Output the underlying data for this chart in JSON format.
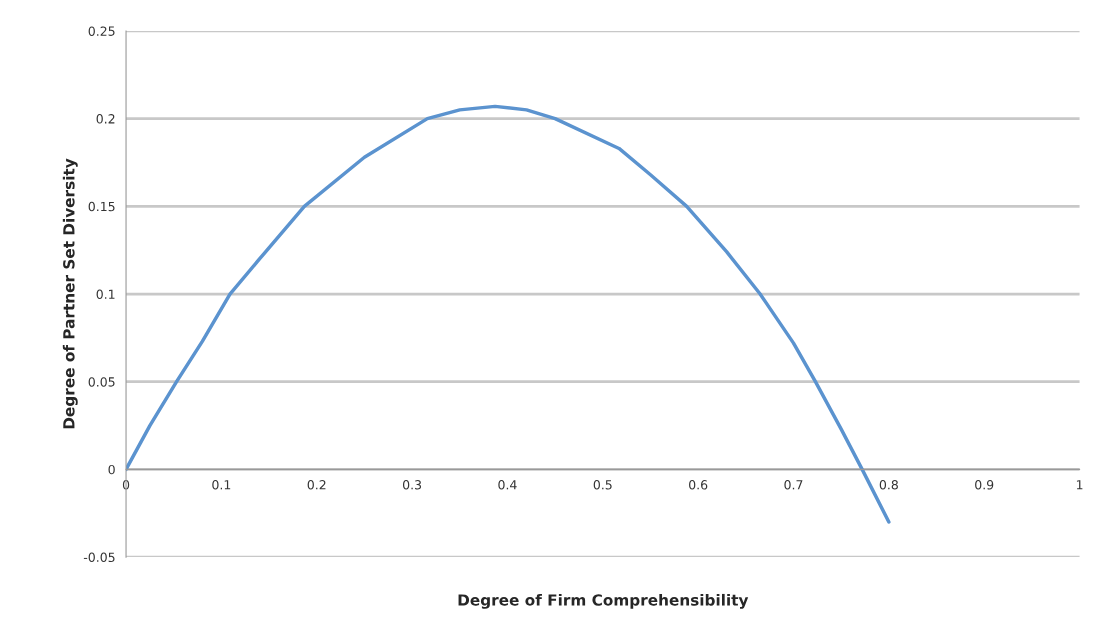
{
  "chart_data": {
    "type": "line",
    "xlabel": "Degree of Firm Comprehensibility",
    "ylabel": "Degree of Partner Set Diversity",
    "series": [
      {
        "color": "#5b93cf",
        "x": [
          0,
          0.025,
          0.053,
          0.08,
          0.109,
          0.14,
          0.187,
          0.25,
          0.316,
          0.35,
          0.387,
          0.42,
          0.45,
          0.517,
          0.55,
          0.588,
          0.63,
          0.665,
          0.7,
          0.723,
          0.75,
          0.772,
          0.8
        ],
        "values": [
          0,
          0.025,
          0.05,
          0.073,
          0.1,
          0.12,
          0.15,
          0.178,
          0.2,
          0.205,
          0.207,
          0.205,
          0.2,
          0.183,
          0.168,
          0.15,
          0.124,
          0.1,
          0.072,
          0.05,
          0.023,
          0,
          -0.03
        ]
      }
    ],
    "xlim": [
      0,
      1
    ],
    "xticks": [
      0,
      0.1,
      0.2,
      0.3,
      0.4,
      0.5,
      0.6,
      0.7,
      0.8,
      0.9,
      1
    ],
    "ylim": [
      -0.05,
      0.25
    ],
    "yticks": [
      -0.05,
      0,
      0.05,
      0.1,
      0.15,
      0.2,
      0.25
    ],
    "grid": "y",
    "marker": "none",
    "line_style": "solid",
    "legend": false
  }
}
